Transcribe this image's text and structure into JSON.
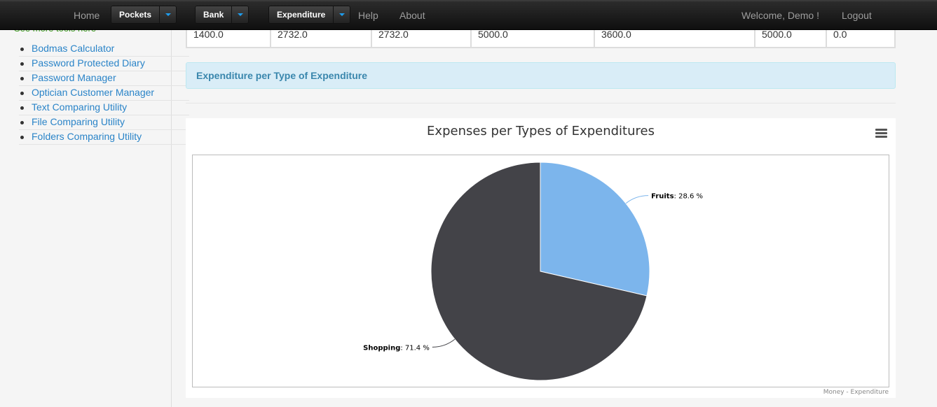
{
  "navbar": {
    "home": "Home",
    "pockets": "Pockets",
    "bank": "Bank",
    "expenditure": "Expenditure",
    "help": "Help",
    "about": "About",
    "welcome": "Welcome, Demo !",
    "logout": "Logout"
  },
  "sidebar": {
    "see_more": "See more tools here",
    "items": [
      "Bodmas Calculator",
      "Password Protected Diary",
      "Password Manager",
      "Optician Customer Manager",
      "Text Comparing Utility",
      "File Comparing Utility",
      "Folders Comparing Utility"
    ]
  },
  "table_row": [
    "1400.0",
    "2732.0",
    "2732.0",
    "5000.0",
    "3600.0",
    "5000.0",
    "0.0"
  ],
  "section_heading": "Expenditure per Type of Expenditure",
  "chart_credits": "Money - Expenditure",
  "colors": {
    "fruits": "#7cb5ec",
    "shopping": "#434348",
    "accent": "#1e9ef0"
  },
  "chart_data": {
    "type": "pie",
    "title": "Expenses per Types of Expenditures",
    "slices": [
      {
        "name": "Fruits",
        "value": 28.6,
        "label": "28.6 %"
      },
      {
        "name": "Shopping",
        "value": 71.4,
        "label": "71.4 %"
      }
    ]
  }
}
